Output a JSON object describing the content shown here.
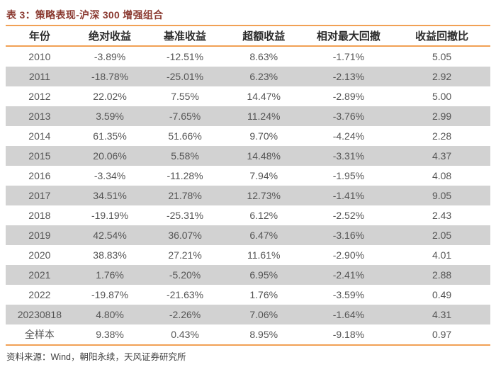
{
  "page": {
    "title": "表 3：策略表现-沪深 300 增强组合",
    "source_note": "资料来源：Wind，朝阳永续，天风证券研究所"
  },
  "colors": {
    "background": "#FFFFFF",
    "title_text": "#8B3A31",
    "accent_rule": "#F1A155",
    "row_stripe": "#D2D2D2",
    "header_text": "#2B2B2B",
    "body_text": "#555555",
    "source_text": "#3F3F3F"
  },
  "chart_data": {
    "type": "table",
    "title": "表 3：策略表现-沪深 300 增强组合",
    "columns": [
      "年份",
      "绝对收益",
      "基准收益",
      "超额收益",
      "相对最大回撤",
      "收益回撤比"
    ],
    "rows": [
      [
        "2010",
        "-3.89%",
        "-12.51%",
        "8.63%",
        "-1.71%",
        "5.05"
      ],
      [
        "2011",
        "-18.78%",
        "-25.01%",
        "6.23%",
        "-2.13%",
        "2.92"
      ],
      [
        "2012",
        "22.02%",
        "7.55%",
        "14.47%",
        "-2.89%",
        "5.00"
      ],
      [
        "2013",
        "3.59%",
        "-7.65%",
        "11.24%",
        "-3.76%",
        "2.99"
      ],
      [
        "2014",
        "61.35%",
        "51.66%",
        "9.70%",
        "-4.24%",
        "2.28"
      ],
      [
        "2015",
        "20.06%",
        "5.58%",
        "14.48%",
        "-3.31%",
        "4.37"
      ],
      [
        "2016",
        "-3.34%",
        "-11.28%",
        "7.94%",
        "-1.95%",
        "4.08"
      ],
      [
        "2017",
        "34.51%",
        "21.78%",
        "12.73%",
        "-1.41%",
        "9.05"
      ],
      [
        "2018",
        "-19.19%",
        "-25.31%",
        "6.12%",
        "-2.52%",
        "2.43"
      ],
      [
        "2019",
        "42.54%",
        "36.07%",
        "6.47%",
        "-3.16%",
        "2.05"
      ],
      [
        "2020",
        "38.83%",
        "27.21%",
        "11.61%",
        "-2.90%",
        "4.01"
      ],
      [
        "2021",
        "1.76%",
        "-5.20%",
        "6.95%",
        "-2.41%",
        "2.88"
      ],
      [
        "2022",
        "-19.87%",
        "-21.63%",
        "1.76%",
        "-3.59%",
        "0.49"
      ],
      [
        "20230818",
        "4.80%",
        "-2.26%",
        "7.06%",
        "-1.64%",
        "4.31"
      ],
      [
        "全样本",
        "9.38%",
        "0.43%",
        "8.95%",
        "-9.18%",
        "0.97"
      ]
    ],
    "stripe_pattern": "alternate rows shaded starting with second data row (2011)"
  }
}
